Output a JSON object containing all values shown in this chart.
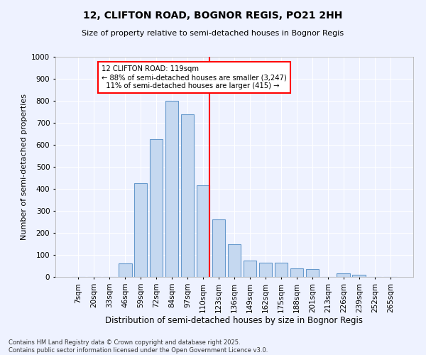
{
  "title1": "12, CLIFTON ROAD, BOGNOR REGIS, PO21 2HH",
  "title2": "Size of property relative to semi-detached houses in Bognor Regis",
  "xlabel": "Distribution of semi-detached houses by size in Bognor Regis",
  "ylabel": "Number of semi-detached properties",
  "footnote": "Contains HM Land Registry data © Crown copyright and database right 2025.\nContains public sector information licensed under the Open Government Licence v3.0.",
  "bar_labels": [
    "7sqm",
    "20sqm",
    "33sqm",
    "46sqm",
    "59sqm",
    "72sqm",
    "84sqm",
    "97sqm",
    "110sqm",
    "123sqm",
    "136sqm",
    "149sqm",
    "162sqm",
    "175sqm",
    "188sqm",
    "201sqm",
    "213sqm",
    "226sqm",
    "239sqm",
    "252sqm",
    "265sqm"
  ],
  "bar_values": [
    0,
    0,
    0,
    60,
    425,
    625,
    800,
    740,
    415,
    260,
    150,
    75,
    65,
    65,
    40,
    35,
    0,
    15,
    10,
    0,
    0
  ],
  "bar_color": "#c5d8f0",
  "bar_edge_color": "#6699cc",
  "property_size": "119sqm",
  "pct_smaller": 88,
  "count_smaller": "3,247",
  "pct_larger": 11,
  "count_larger": 415,
  "ylim": [
    0,
    1000
  ],
  "yticks": [
    0,
    100,
    200,
    300,
    400,
    500,
    600,
    700,
    800,
    900,
    1000
  ],
  "bg_color": "#eef2ff",
  "grid_color": "#ffffff"
}
